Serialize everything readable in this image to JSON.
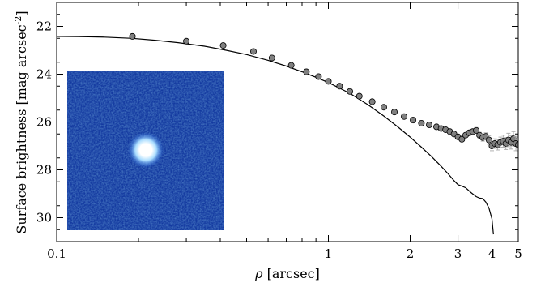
{
  "chart_data": {
    "type": "scatter",
    "title": "",
    "xlabel_symbol": "ρ",
    "xlabel_rest": " [arcsec]",
    "ylabel_text": "Surface brightness [mag arcsec",
    "ylabel_sup": "-2",
    "ylabel_close": "]",
    "x_scale": "log",
    "xlim": [
      0.1,
      5
    ],
    "ylim": [
      31,
      21
    ],
    "y_inverted": true,
    "x_ticks": [
      {
        "value": 0.1,
        "label": "0.1"
      },
      {
        "value": 1,
        "label": "1"
      },
      {
        "value": 2,
        "label": "2"
      },
      {
        "value": 3,
        "label": "3"
      },
      {
        "value": 4,
        "label": "4"
      },
      {
        "value": 5,
        "label": "5"
      }
    ],
    "y_ticks": [
      {
        "value": 22,
        "label": "22"
      },
      {
        "value": 24,
        "label": "24"
      },
      {
        "value": 26,
        "label": "26"
      },
      {
        "value": 28,
        "label": "28"
      },
      {
        "value": 30,
        "label": "30"
      }
    ],
    "grid": false,
    "series": [
      {
        "kind": "line",
        "color": "#000000",
        "x": [
          0.1,
          0.12,
          0.15,
          0.19,
          0.23,
          0.28,
          0.35,
          0.42,
          0.5,
          0.6,
          0.7,
          0.8,
          0.9,
          1.0,
          1.2,
          1.4,
          1.6,
          1.8,
          2.0,
          2.2,
          2.4,
          2.6,
          2.75,
          2.9,
          3.0,
          3.1,
          3.2,
          3.35,
          3.5,
          3.6,
          3.7,
          3.8,
          3.9,
          4.0,
          4.05
        ],
        "y": [
          22.42,
          22.43,
          22.45,
          22.5,
          22.58,
          22.68,
          22.83,
          23.0,
          23.18,
          23.42,
          23.66,
          23.9,
          24.13,
          24.35,
          24.8,
          25.28,
          25.75,
          26.2,
          26.63,
          27.05,
          27.45,
          27.85,
          28.15,
          28.45,
          28.62,
          28.68,
          28.75,
          28.95,
          29.12,
          29.18,
          29.2,
          29.35,
          29.6,
          30.05,
          30.7
        ]
      },
      {
        "kind": "points",
        "color": "#808080",
        "x": [
          0.19,
          0.3,
          0.41,
          0.53,
          0.62,
          0.73,
          0.83,
          0.92,
          1.0,
          1.1,
          1.2,
          1.3,
          1.45,
          1.6,
          1.75,
          1.9,
          2.05,
          2.2,
          2.35,
          2.5,
          2.6,
          2.7,
          2.8,
          2.9,
          3.0,
          3.1,
          3.2,
          3.3,
          3.4,
          3.5,
          3.6,
          3.7,
          3.8,
          3.9,
          4.0,
          4.1,
          4.2,
          4.3,
          4.4,
          4.5,
          4.6,
          4.7,
          4.8,
          4.9,
          5.0
        ],
        "y": [
          22.42,
          22.62,
          22.8,
          23.05,
          23.32,
          23.63,
          23.9,
          24.1,
          24.3,
          24.5,
          24.72,
          24.92,
          25.15,
          25.38,
          25.58,
          25.77,
          25.92,
          26.05,
          26.12,
          26.2,
          26.27,
          26.32,
          26.4,
          26.5,
          26.62,
          26.72,
          26.55,
          26.45,
          26.4,
          26.35,
          26.55,
          26.65,
          26.6,
          26.75,
          27.0,
          26.9,
          26.95,
          26.85,
          26.8,
          26.9,
          26.75,
          26.85,
          26.7,
          26.9,
          26.95
        ],
        "err": [
          0,
          0,
          0,
          0,
          0,
          0,
          0,
          0,
          0,
          0,
          0,
          0,
          0,
          0,
          0,
          0,
          0,
          0,
          0,
          0,
          0,
          0,
          0,
          0,
          0.05,
          0.08,
          0.08,
          0.1,
          0.1,
          0.12,
          0.12,
          0.15,
          0.15,
          0.18,
          0.2,
          0.2,
          0.22,
          0.22,
          0.25,
          0.25,
          0.28,
          0.28,
          0.3,
          0.3,
          0.3
        ]
      }
    ],
    "inset": {
      "description_colors": {
        "background": "#14359a",
        "source_core": "#ffffff",
        "source_glow": "#7fc8ff"
      },
      "position": "lower-left"
    }
  }
}
